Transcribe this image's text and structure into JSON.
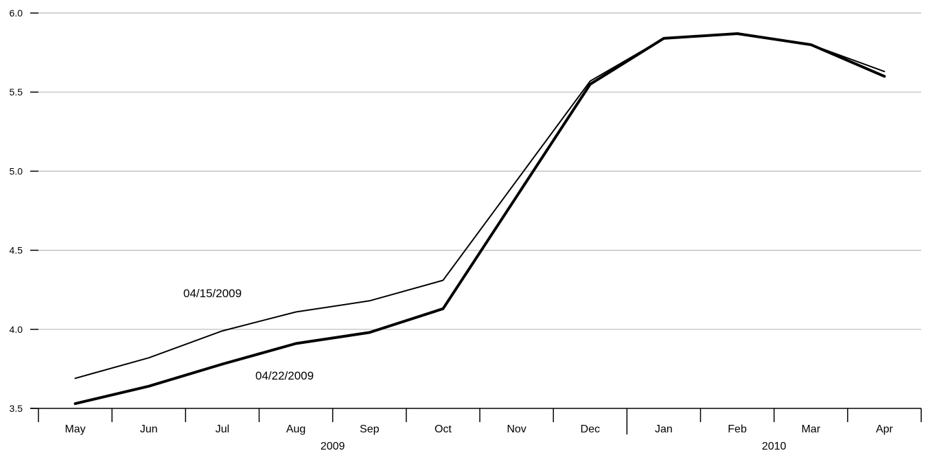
{
  "chart_data": {
    "type": "line",
    "title": "",
    "xlabel": "",
    "ylabel": "",
    "categories": [
      "May",
      "Jun",
      "Jul",
      "Aug",
      "Sep",
      "Oct",
      "Nov",
      "Dec",
      "Jan",
      "Feb",
      "Mar",
      "Apr"
    ],
    "year_groups": [
      {
        "label": "2009",
        "start": 0,
        "end": 7
      },
      {
        "label": "2010",
        "start": 8,
        "end": 11
      }
    ],
    "ylim": [
      3.5,
      6.0
    ],
    "yticks": [
      3.5,
      4.0,
      4.5,
      5.0,
      5.5,
      6.0
    ],
    "ytick_labels": [
      "3.5",
      "4.0",
      "4.5",
      "5.0",
      "5.5",
      "6.0"
    ],
    "grid": true,
    "series": [
      {
        "name": "04/15/2009",
        "style": "thin",
        "values": [
          3.69,
          3.82,
          3.99,
          4.11,
          4.18,
          4.31,
          4.94,
          5.57,
          5.84,
          5.87,
          5.8,
          5.63
        ]
      },
      {
        "name": "04/22/2009",
        "style": "thick",
        "values": [
          3.53,
          3.64,
          3.78,
          3.91,
          3.98,
          4.13,
          4.84,
          5.55,
          5.84,
          5.87,
          5.8,
          5.6
        ]
      }
    ],
    "colors": {
      "line": "#000000",
      "grid": "#b8b8b8"
    }
  }
}
